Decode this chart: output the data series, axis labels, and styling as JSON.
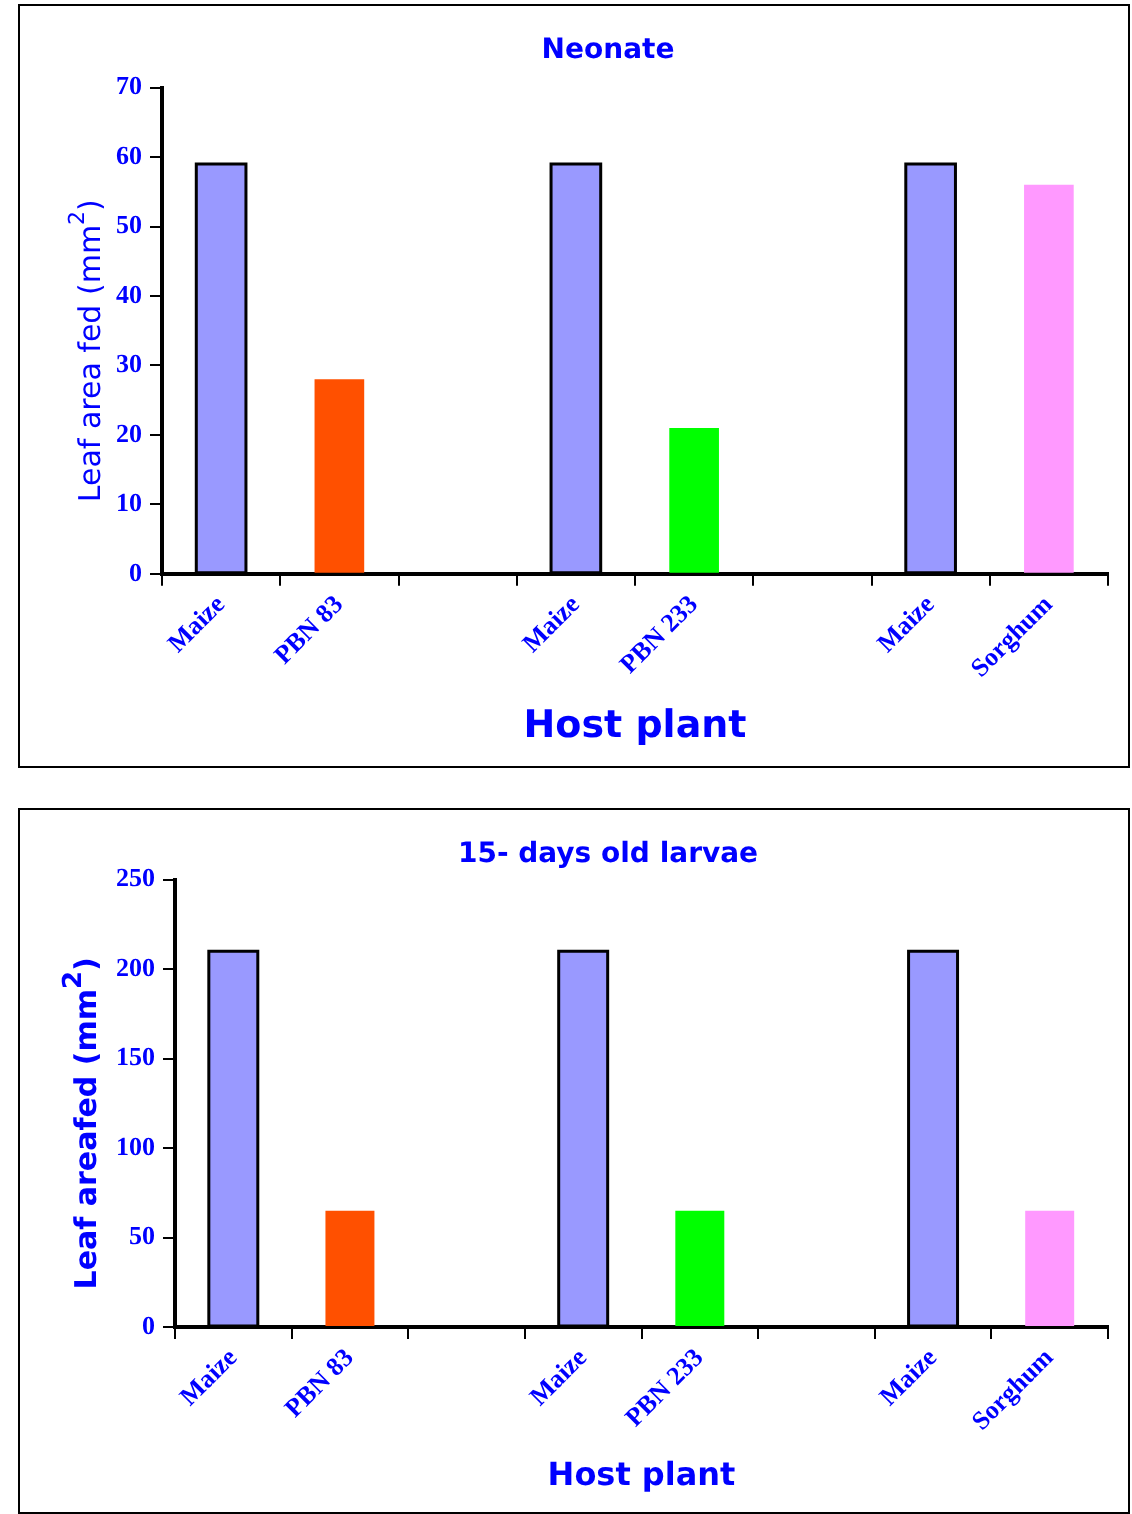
{
  "chart_data": [
    {
      "type": "bar",
      "title": "Neonate",
      "xlabel": "Host plant",
      "ylabel": "Leaf area fed (mm$^{2}$)",
      "categories": [
        "Maize",
        "PBN 83",
        null,
        "Maize",
        "PBN 233",
        null,
        "Maize",
        "Sorghum"
      ],
      "values": [
        59,
        28,
        null,
        59,
        21,
        null,
        59,
        56
      ],
      "colors": [
        "#9999ff",
        "#ff5000",
        null,
        "#9999ff",
        "#00ff00",
        null,
        "#9999ff",
        "#ff99ff"
      ],
      "ylim": [
        0,
        70
      ],
      "yticks": [
        0,
        10,
        20,
        30,
        40,
        50,
        60,
        70
      ],
      "grid": false,
      "legend": false
    },
    {
      "type": "bar",
      "title": "15- days old larvae",
      "xlabel": "Host plant",
      "ylabel": "Leaf areafed (mm$^{2}$)",
      "categories": [
        "Maize",
        "PBN 83",
        null,
        "Maize",
        "PBN 233",
        null,
        "Maize",
        "Sorghum"
      ],
      "values": [
        210,
        65,
        null,
        210,
        65,
        null,
        210,
        65
      ],
      "colors": [
        "#9999ff",
        "#ff5000",
        null,
        "#9999ff",
        "#00ff00",
        null,
        "#9999ff",
        "#ff99ff"
      ],
      "ylim": [
        0,
        250
      ],
      "yticks": [
        0,
        50,
        100,
        150,
        200,
        250
      ],
      "grid": false,
      "legend": false
    }
  ]
}
